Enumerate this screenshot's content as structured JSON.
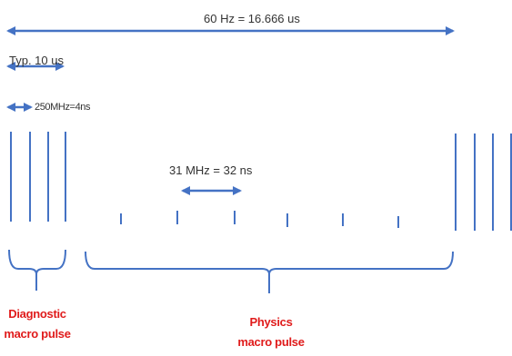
{
  "labels": {
    "period": "60 Hz  = 16.666 us",
    "diag_length": "Typ. 10 us",
    "diag_spacing": "250MHz=4ns",
    "phys_spacing": "31 MHz = 32 ns",
    "diag_name_line1": "Diagnostic",
    "diag_name_line2": "macro pulse",
    "phys_name_line1": "Physics",
    "phys_name_line2": "macro pulse"
  },
  "colors": {
    "line": "#4472c4",
    "label": "#333333",
    "group_label": "#e01b1b"
  }
}
